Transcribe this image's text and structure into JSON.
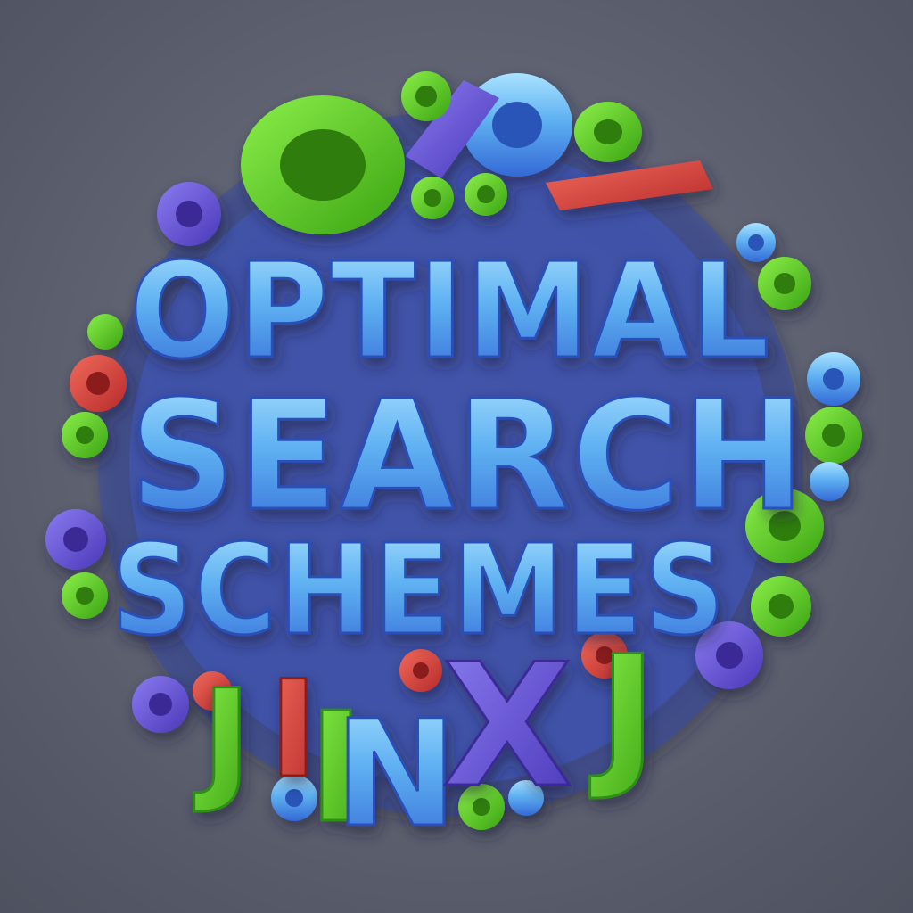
{
  "artwork": {
    "title_lines": [
      "OPTIMAL",
      "SEARCH",
      "SCHEMES"
    ],
    "bottom_glyphs": [
      "J",
      "I",
      "I",
      "N",
      "X",
      "J"
    ],
    "colors": {
      "background": "#5f6372",
      "blue_light": "#7ec8f5",
      "blue_mid": "#3f8be3",
      "blue_dark": "#2a4fb8",
      "green": "#5cd62a",
      "green_dark": "#2f8f12",
      "purple": "#6a55d8",
      "red": "#e0413c"
    }
  }
}
